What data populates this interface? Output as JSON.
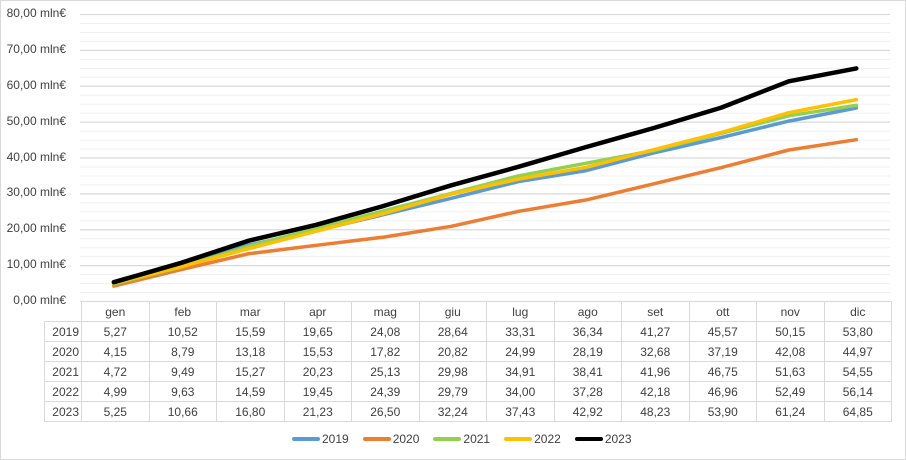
{
  "chart_data": {
    "type": "line",
    "title": "",
    "xlabel": "",
    "ylabel": "mln€",
    "ylim": [
      0,
      80
    ],
    "y_ticks": [
      "0,00 mln€",
      "10,00 mln€",
      "20,00 mln€",
      "30,00 mln€",
      "40,00 mln€",
      "50,00 mln€",
      "60,00 mln€",
      "70,00 mln€",
      "80,00 mln€"
    ],
    "grid": "major every 10, minor every 2.5",
    "legend_position": "bottom",
    "categories": [
      "gen",
      "feb",
      "mar",
      "apr",
      "mag",
      "giu",
      "lug",
      "ago",
      "set",
      "ott",
      "nov",
      "dic"
    ],
    "series": [
      {
        "name": "2019",
        "color": "#5b9bd5",
        "values": [
          5.27,
          10.52,
          15.59,
          19.65,
          24.08,
          28.64,
          33.31,
          36.34,
          41.27,
          45.57,
          50.15,
          53.8
        ],
        "labels": [
          "5,27",
          "10,52",
          "15,59",
          "19,65",
          "24,08",
          "28,64",
          "33,31",
          "36,34",
          "41,27",
          "45,57",
          "50,15",
          "53,80"
        ]
      },
      {
        "name": "2020",
        "color": "#ed7d31",
        "values": [
          4.15,
          8.79,
          13.18,
          15.53,
          17.82,
          20.82,
          24.99,
          28.19,
          32.68,
          37.19,
          42.08,
          44.97
        ],
        "labels": [
          "4,15",
          "8,79",
          "13,18",
          "15,53",
          "17,82",
          "20,82",
          "24,99",
          "28,19",
          "32,68",
          "37,19",
          "42,08",
          "44,97"
        ]
      },
      {
        "name": "2021",
        "color": "#92d050",
        "values": [
          4.72,
          9.49,
          15.27,
          20.23,
          25.13,
          29.98,
          34.91,
          38.41,
          41.96,
          46.75,
          51.63,
          54.55
        ],
        "labels": [
          "4,72",
          "9,49",
          "15,27",
          "20,23",
          "25,13",
          "29,98",
          "34,91",
          "38,41",
          "41,96",
          "46,75",
          "51,63",
          "54,55"
        ]
      },
      {
        "name": "2022",
        "color": "#ffc000",
        "values": [
          4.99,
          9.63,
          14.59,
          19.45,
          24.39,
          29.79,
          34.0,
          37.28,
          42.18,
          46.96,
          52.49,
          56.14
        ],
        "labels": [
          "4,99",
          "9,63",
          "14,59",
          "19,45",
          "24,39",
          "29,79",
          "34,00",
          "37,28",
          "42,18",
          "46,96",
          "52,49",
          "56,14"
        ]
      },
      {
        "name": "2023",
        "color": "#000000",
        "values": [
          5.25,
          10.66,
          16.8,
          21.23,
          26.5,
          32.24,
          37.43,
          42.92,
          48.23,
          53.9,
          61.24,
          64.85
        ],
        "labels": [
          "5,25",
          "10,66",
          "16,80",
          "21,23",
          "26,50",
          "32,24",
          "37,43",
          "42,92",
          "48,23",
          "53,90",
          "61,24",
          "64,85"
        ]
      }
    ]
  }
}
